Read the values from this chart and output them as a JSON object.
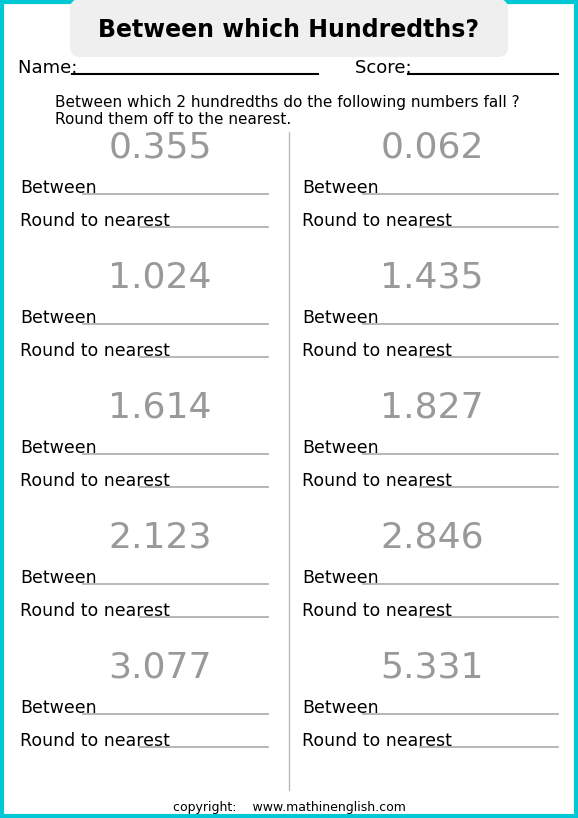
{
  "title": "Between which Hundredths?",
  "name_label": "Name:  ",
  "score_label": "Score:  ",
  "instruction_line1": "Between which 2 hundredths do the following numbers fall ?",
  "instruction_line2": "Round them off to the nearest.",
  "numbers_left": [
    "0.355",
    "1.024",
    "1.614",
    "2.123",
    "3.077"
  ],
  "numbers_right": [
    "0.062",
    "1.435",
    "1.827",
    "2.846",
    "5.331"
  ],
  "between_label": "Between",
  "round_label": "Round to nearest",
  "copyright": "copyright:    www.mathinenglish.com",
  "bg_color": "#ffffff",
  "title_bg": "#efefef",
  "border_color": "#00c8d4",
  "text_color": "#000000",
  "line_color": "#aaaaaa",
  "divider_color": "#bbbbbb",
  "number_color": "#999999",
  "title_fontsize": 17,
  "number_fontsize": 26,
  "label_fontsize": 12.5,
  "instr_fontsize": 11,
  "name_fontsize": 13,
  "small_fontsize": 9,
  "fig_width": 5.78,
  "fig_height": 8.18,
  "dpi": 100
}
